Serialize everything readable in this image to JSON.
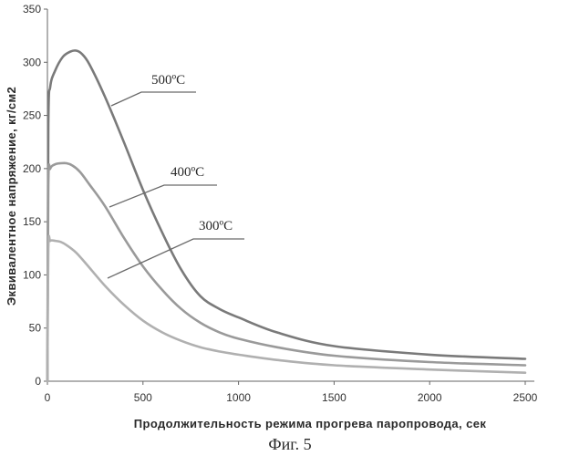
{
  "chart_data": {
    "type": "line",
    "ylabel": "Эквивалентное напряжение, кг/см2",
    "xlabel": "Продолжительность режима прогрева паропровода, сек",
    "caption": "Фиг. 5",
    "xlim": [
      0,
      2500
    ],
    "ylim": [
      0,
      350
    ],
    "xticks": [
      0,
      500,
      1000,
      1500,
      2000,
      2500
    ],
    "yticks": [
      0,
      50,
      100,
      150,
      200,
      250,
      300,
      350
    ],
    "xtick_labels": [
      "0",
      "500",
      "1000",
      "1500",
      "2000",
      "2500"
    ],
    "ytick_labels": [
      "0",
      "50",
      "100",
      "150",
      "200",
      "250",
      "300",
      "350"
    ],
    "grid": false,
    "series": [
      {
        "name": "500ºC",
        "color": "#7a7a7a",
        "x": [
          0,
          5,
          15,
          40,
          80,
          120,
          150,
          180,
          220,
          300,
          400,
          500,
          600,
          700,
          800,
          900,
          1000,
          1200,
          1500,
          2000,
          2500
        ],
        "y": [
          0,
          240,
          277,
          292,
          305,
          310,
          311,
          308,
          298,
          268,
          225,
          180,
          140,
          105,
          80,
          68,
          60,
          46,
          33,
          25,
          21
        ]
      },
      {
        "name": "400ºC",
        "color": "#9a9a9a",
        "x": [
          0,
          5,
          15,
          40,
          70,
          100,
          130,
          170,
          220,
          300,
          400,
          500,
          600,
          700,
          800,
          900,
          1000,
          1200,
          1500,
          2000,
          2500
        ],
        "y": [
          0,
          185,
          200,
          204,
          205,
          205,
          203,
          197,
          185,
          165,
          135,
          108,
          86,
          68,
          55,
          46,
          40,
          32,
          24,
          18,
          15
        ]
      },
      {
        "name": "300ºC",
        "color": "#b0b0b0",
        "x": [
          0,
          5,
          15,
          40,
          70,
          100,
          150,
          200,
          300,
          400,
          500,
          600,
          700,
          800,
          900,
          1000,
          1200,
          1500,
          2000,
          2500
        ],
        "y": [
          0,
          125,
          132,
          132,
          131,
          128,
          121,
          111,
          90,
          72,
          57,
          46,
          38,
          32,
          28,
          25,
          20,
          15,
          11,
          8
        ]
      }
    ]
  }
}
